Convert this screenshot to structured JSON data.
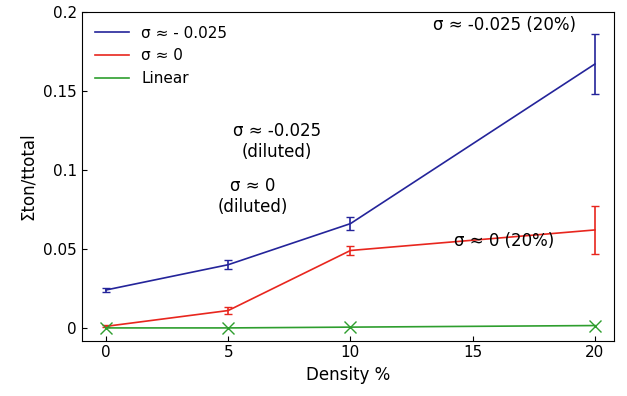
{
  "chart_data": {
    "type": "line",
    "x_label": "Density %",
    "y_label": "Σton/ttotal",
    "x": [
      0,
      5,
      10,
      20
    ],
    "series": [
      {
        "name": "σ ≈ - 0.025",
        "color": "#24249a",
        "values": [
          0.024,
          0.04,
          0.066,
          0.167
        ],
        "errors": [
          0.001,
          0.003,
          0.004,
          0.019
        ]
      },
      {
        "name": "σ ≈ 0",
        "color": "#e8261e",
        "values": [
          0.001,
          0.011,
          0.049,
          0.062
        ],
        "errors": [
          0.0006,
          0.002,
          0.003,
          0.015
        ]
      },
      {
        "name": "Linear",
        "color": "#2e9e2e",
        "marker": "x",
        "values": [
          0,
          0,
          0.0005,
          0.0015
        ]
      }
    ],
    "annotations": [
      "σ ≈ -0.025\n(diluted)",
      "σ ≈ 0\n(diluted)",
      "σ ≈ -0.025 (20%)",
      "σ ≈ 0 (20%)"
    ],
    "xlim": [
      -1.0,
      20.8
    ],
    "xticks": [
      0,
      5,
      10,
      15,
      20
    ],
    "ylim": [
      -0.008,
      0.2
    ],
    "yticks": [
      0,
      0.05,
      0.1,
      0.15,
      0.2
    ],
    "legend": "upper left"
  }
}
